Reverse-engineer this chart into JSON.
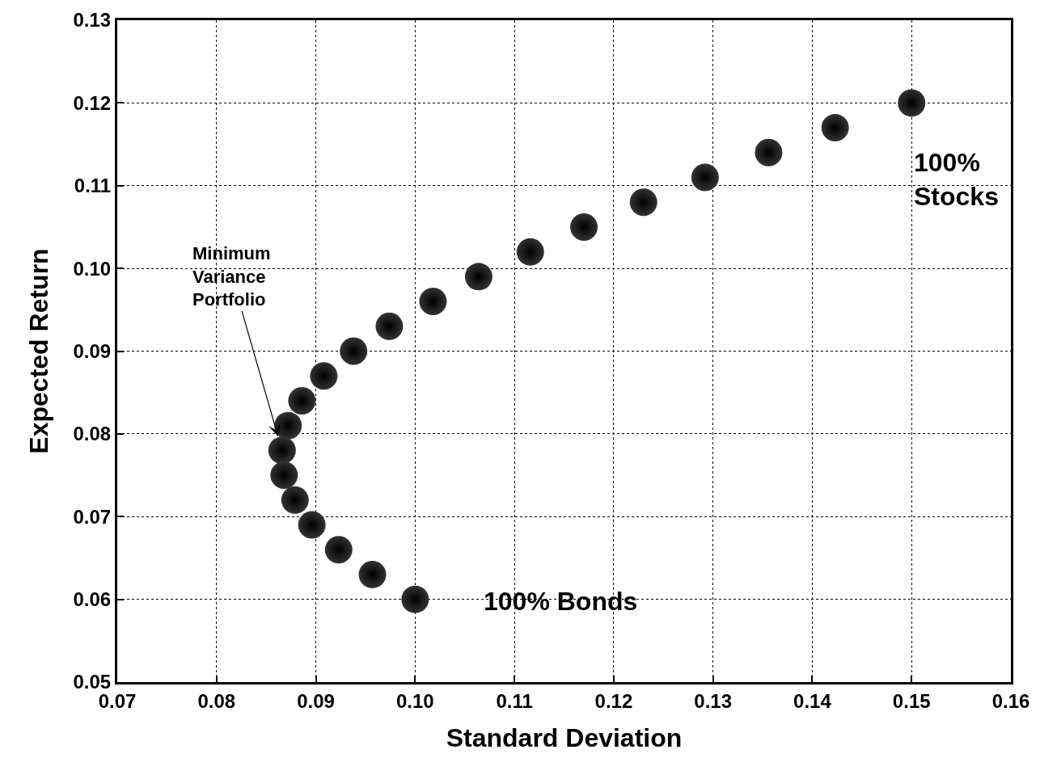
{
  "chart_data": {
    "type": "scatter",
    "xlabel": "Standard Deviation",
    "ylabel": "Expected Return",
    "x": [
      0.15,
      0.1423,
      0.1356,
      0.1292,
      0.123,
      0.117,
      0.1116,
      0.1064,
      0.1018,
      0.0974,
      0.0938,
      0.0908,
      0.0886,
      0.0872,
      0.0866,
      0.0868,
      0.0879,
      0.0896,
      0.0923,
      0.0957,
      0.1
    ],
    "series": [
      {
        "color": "#333333",
        "values": [
          0.12,
          0.117,
          0.114,
          0.111,
          0.108,
          0.105,
          0.102,
          0.099,
          0.096,
          0.093,
          0.09,
          0.087,
          0.084,
          0.081,
          0.078,
          0.075,
          0.072,
          0.069,
          0.066,
          0.063,
          0.06
        ]
      }
    ],
    "xlim": [
      0.07,
      0.16
    ],
    "xticks": [
      {
        "value": 0.07,
        "label": "0.07"
      },
      {
        "value": 0.08,
        "label": "0.08"
      },
      {
        "value": 0.09,
        "label": "0.09"
      },
      {
        "value": 0.1,
        "label": "0.10"
      },
      {
        "value": 0.11,
        "label": "0.11"
      },
      {
        "value": 0.12,
        "label": "0.12"
      },
      {
        "value": 0.13,
        "label": "0.13"
      },
      {
        "value": 0.14,
        "label": "0.14"
      },
      {
        "value": 0.15,
        "label": "0.15"
      },
      {
        "value": 0.16,
        "label": "0.16"
      }
    ],
    "ylim": [
      0.05,
      0.13
    ],
    "yticks": [
      {
        "value": 0.05,
        "label": "0.05"
      },
      {
        "value": 0.06,
        "label": "0.06"
      },
      {
        "value": 0.07,
        "label": "0.07"
      },
      {
        "value": 0.08,
        "label": "0.08"
      },
      {
        "value": 0.09,
        "label": "0.09"
      },
      {
        "value": 0.1,
        "label": "0.10"
      },
      {
        "value": 0.11,
        "label": "0.11"
      },
      {
        "value": 0.12,
        "label": "0.12"
      },
      {
        "value": 0.13,
        "label": "0.13"
      }
    ],
    "grid": true,
    "marker": "circle",
    "annotations": [
      {
        "text": "Minimum\nVariance\nPortfolio",
        "x": 0.0866,
        "y": 0.078
      },
      {
        "text": "100%\nStocks",
        "x": 0.15,
        "y": 0.12
      },
      {
        "text": "100% Bonds",
        "x": 0.1,
        "y": 0.06
      }
    ]
  }
}
